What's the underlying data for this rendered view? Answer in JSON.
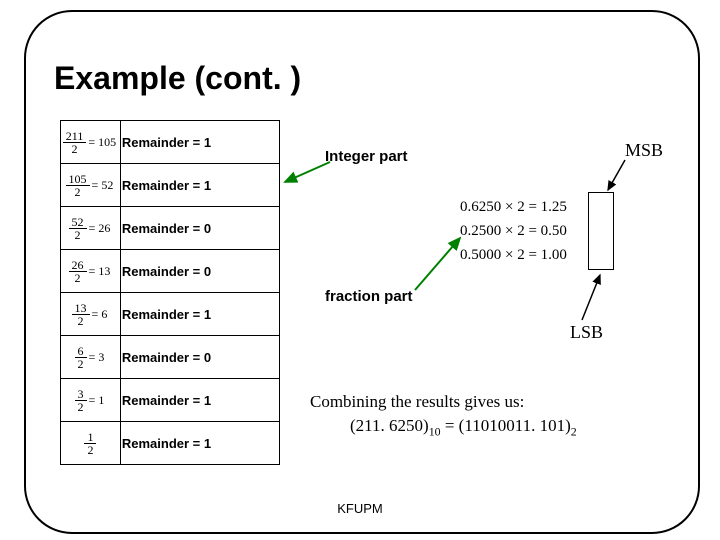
{
  "title": "Example (cont. )",
  "integer_rows": [
    {
      "num": "211",
      "den": "2",
      "res": "105",
      "remainder": "Remainder = 1"
    },
    {
      "num": "105",
      "den": "2",
      "res": "52",
      "remainder": "Remainder = 1"
    },
    {
      "num": "52",
      "den": "2",
      "res": "26",
      "remainder": "Remainder = 0"
    },
    {
      "num": "26",
      "den": "2",
      "res": "13",
      "remainder": "Remainder = 0"
    },
    {
      "num": "13",
      "den": "2",
      "res": "6",
      "remainder": "Remainder = 1"
    },
    {
      "num": "6",
      "den": "2",
      "res": "3",
      "remainder": "Remainder = 0"
    },
    {
      "num": "3",
      "den": "2",
      "res": "1",
      "remainder": "Remainder = 1"
    },
    {
      "num": "1",
      "den": "2",
      "res": "",
      "remainder": "Remainder = 1"
    }
  ],
  "fraction_rows": [
    "0.6250 × 2 = 1.25",
    "0.2500 × 2 = 0.50",
    "0.5000 × 2 = 1.00"
  ],
  "labels": {
    "integer": "Integer part",
    "fraction": "fraction part",
    "msb": "MSB",
    "lsb": "LSB"
  },
  "combine": {
    "line1": "Combining the results gives us:",
    "line2_prefix": "(211. 6250)",
    "line2_sub1": "10",
    "line2_mid": " = (11010011. 101)",
    "line2_sub2": "2"
  },
  "footer": "KFUPM",
  "colors": {
    "arrow_green": "#008000",
    "arrow_black": "#000000"
  }
}
